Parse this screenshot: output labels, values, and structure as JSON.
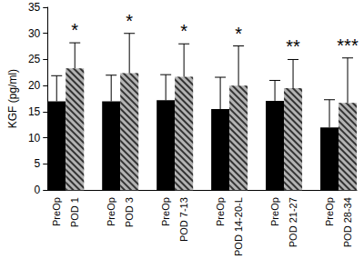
{
  "chart_data": {
    "type": "bar",
    "ylabel": "KGF (pg/ml)",
    "categories": [
      "PreOp",
      "POD 1",
      null,
      "PreOp",
      "POD 3",
      null,
      "PreOp",
      "POD 7-13",
      null,
      "PreOp",
      "POD 14-20-L",
      null,
      "PreOp",
      "POD 21-27",
      null,
      "PreOp",
      "POD 28-34"
    ],
    "series": [
      {
        "color": "#000000",
        "values": [
          17,
          null,
          null,
          17,
          null,
          null,
          17.2,
          null,
          null,
          15.5,
          null,
          null,
          17.1,
          null,
          null,
          12,
          null
        ],
        "errors": [
          4.9,
          null,
          null,
          5,
          null,
          null,
          4.9,
          null,
          null,
          6.1,
          null,
          null,
          3.9,
          null,
          null,
          5.3,
          null
        ]
      },
      {
        "color": "#b3b3b3",
        "values": [
          null,
          23.3,
          null,
          null,
          22.4,
          null,
          null,
          21.7,
          null,
          null,
          20,
          null,
          null,
          19.5,
          null,
          null,
          16.7
        ],
        "errors": [
          null,
          4.9,
          null,
          null,
          7.6,
          null,
          null,
          6.3,
          null,
          null,
          7.6,
          null,
          null,
          5.5,
          null,
          null,
          8.6
        ],
        "annotations": [
          null,
          "*",
          null,
          null,
          "*",
          null,
          null,
          "*",
          null,
          null,
          "*",
          null,
          null,
          "**",
          null,
          null,
          "***"
        ]
      }
    ],
    "ylim": [
      0,
      35
    ],
    "yticks": [
      0,
      5,
      10,
      15,
      20,
      25,
      30,
      35
    ],
    "grid": false
  }
}
